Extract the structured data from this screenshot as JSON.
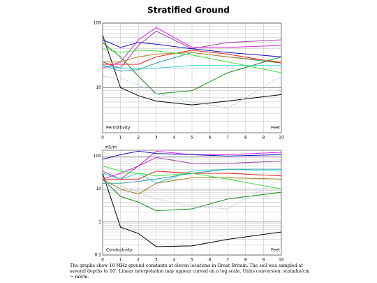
{
  "title": "Stratified Ground",
  "caption": "The graphs show 10 MHz ground constants at eleven locations in Great Britain. The soil was sampled at several depths to 10′. Linear interpolation may appear curved on a log scale. Units conversion: statmho/cm → mS/m.",
  "chart_data": [
    {
      "type": "line",
      "panel_label": "Permittivity",
      "xlabel": "Feet",
      "yscale": "log",
      "grid": true,
      "x": [
        0,
        1,
        2,
        3,
        5,
        7,
        10
      ],
      "xlim": [
        0,
        10
      ],
      "xticks": [
        0,
        1,
        2,
        3,
        4,
        5,
        6,
        7,
        8,
        9,
        10
      ],
      "ylim": [
        2,
        100
      ],
      "yticks": [
        10,
        100
      ],
      "y_minor_ticks": [
        2,
        3,
        4,
        5,
        6,
        7,
        8,
        9,
        20,
        30,
        40,
        50,
        60,
        70,
        80,
        90
      ],
      "series": [
        {
          "color": "#000000",
          "values": [
            65,
            10,
            7.5,
            6.2,
            5.4,
            6.2,
            7.8
          ]
        },
        {
          "color": "#1a8a1a",
          "values": [
            50,
            30,
            15,
            8,
            9,
            17,
            30
          ]
        },
        {
          "color": "#a8c8e8",
          "dashed": true,
          "values": [
            15,
            14,
            11,
            8,
            6,
            4.8,
            15
          ]
        },
        {
          "color": "#e020e0",
          "values": [
            20,
            25,
            55,
            85,
            42,
            42,
            45
          ]
        },
        {
          "color": "#a040a0",
          "values": [
            25,
            20,
            45,
            75,
            40,
            50,
            55
          ]
        },
        {
          "color": "#1010c0",
          "values": [
            55,
            42,
            50,
            47,
            40,
            35,
            30
          ]
        },
        {
          "color": "#30d0e0",
          "values": [
            22,
            20,
            20,
            20,
            22,
            22,
            22
          ]
        },
        {
          "color": "#30a0a0",
          "values": [
            22,
            18,
            19,
            24,
            35,
            30,
            24
          ]
        },
        {
          "color": "#e02020",
          "values": [
            23,
            23,
            23,
            30,
            38,
            33,
            24
          ]
        },
        {
          "color": "#c08020",
          "values": [
            25,
            25,
            30,
            33,
            35,
            30,
            25
          ]
        },
        {
          "color": "#40e040",
          "values": [
            40,
            35,
            38,
            37,
            32,
            25,
            17
          ]
        }
      ]
    },
    {
      "type": "line",
      "panel_label": "Conductivity",
      "xlabel": "Feet",
      "ylabel": "mS/m",
      "yscale": "log",
      "grid": true,
      "x": [
        0,
        1,
        2,
        3,
        5,
        7,
        10
      ],
      "xlim": [
        0,
        10
      ],
      "xticks": [
        0,
        1,
        2,
        3,
        4,
        5,
        6,
        7,
        8,
        9,
        10
      ],
      "ylim": [
        0.1,
        150
      ],
      "yticks": [
        0.1,
        1,
        10,
        100
      ],
      "y_minor_ticks": [
        0.2,
        0.3,
        0.4,
        0.5,
        0.6,
        0.7,
        0.8,
        0.9,
        2,
        3,
        4,
        5,
        6,
        7,
        8,
        9,
        20,
        30,
        40,
        50,
        60,
        70,
        80,
        90
      ],
      "series": [
        {
          "color": "#000000",
          "values": [
            30,
            0.7,
            0.45,
            0.18,
            0.19,
            0.3,
            0.5
          ]
        },
        {
          "color": "#1a8a1a",
          "values": [
            20,
            6,
            4,
            2.2,
            2.5,
            5,
            8
          ]
        },
        {
          "color": "#a8c8e8",
          "dashed": true,
          "values": [
            15,
            12,
            8,
            5,
            3,
            2.5,
            20
          ]
        },
        {
          "color": "#e020e0",
          "values": [
            20,
            30,
            50,
            140,
            110,
            110,
            130
          ]
        },
        {
          "color": "#a040a0",
          "values": [
            35,
            20,
            50,
            90,
            60,
            60,
            70
          ]
        },
        {
          "color": "#1010c0",
          "values": [
            80,
            110,
            140,
            120,
            110,
            100,
            110
          ]
        },
        {
          "color": "#30d0e0",
          "values": [
            30,
            20,
            30,
            15,
            35,
            40,
            35
          ]
        },
        {
          "color": "#30a0a0",
          "values": [
            15,
            15,
            17,
            20,
            30,
            40,
            40
          ]
        },
        {
          "color": "#e02020",
          "values": [
            20,
            20,
            20,
            35,
            30,
            30,
            25
          ]
        },
        {
          "color": "#a08020",
          "values": [
            20,
            10,
            7,
            15,
            22,
            22,
            20
          ]
        },
        {
          "color": "#40e040",
          "values": [
            50,
            35,
            30,
            25,
            30,
            20,
            10
          ]
        }
      ]
    }
  ]
}
